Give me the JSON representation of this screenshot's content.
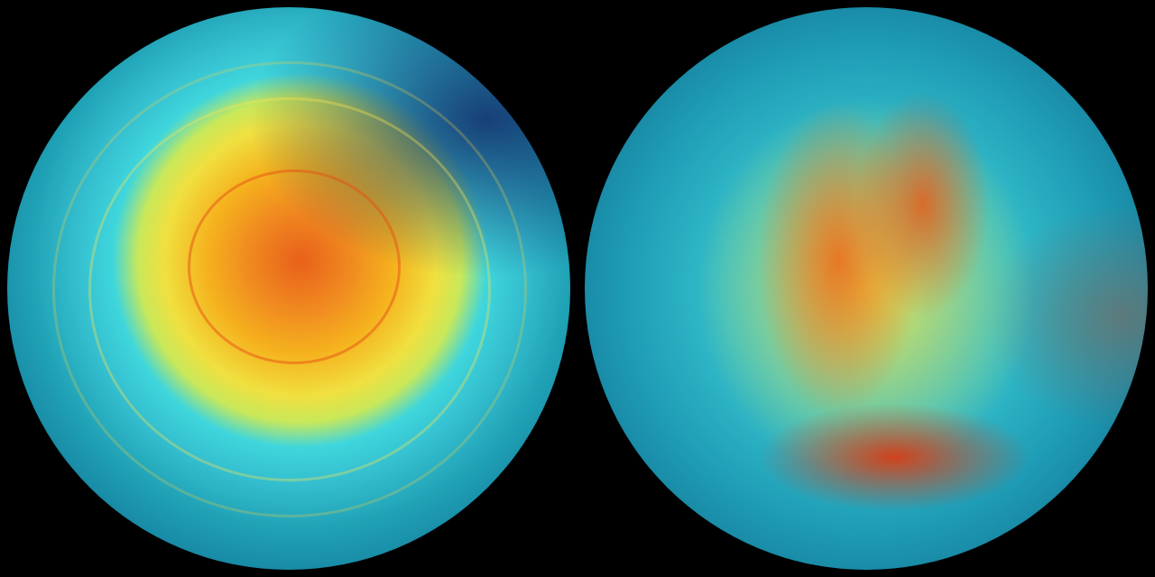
{
  "scene": {
    "globes": [
      {
        "name": "left-globe",
        "colors": {
          "core": "#e8601a",
          "mid": "#f0e040",
          "outer": "#1fa0b4",
          "edge": "#0a2b50"
        }
      },
      {
        "name": "right-globe",
        "colors": {
          "core": "#d73c14",
          "mid": "#f5dc3c",
          "outer": "#34c0cc",
          "edge": "#0a2b50"
        }
      }
    ],
    "background": "#000000"
  }
}
